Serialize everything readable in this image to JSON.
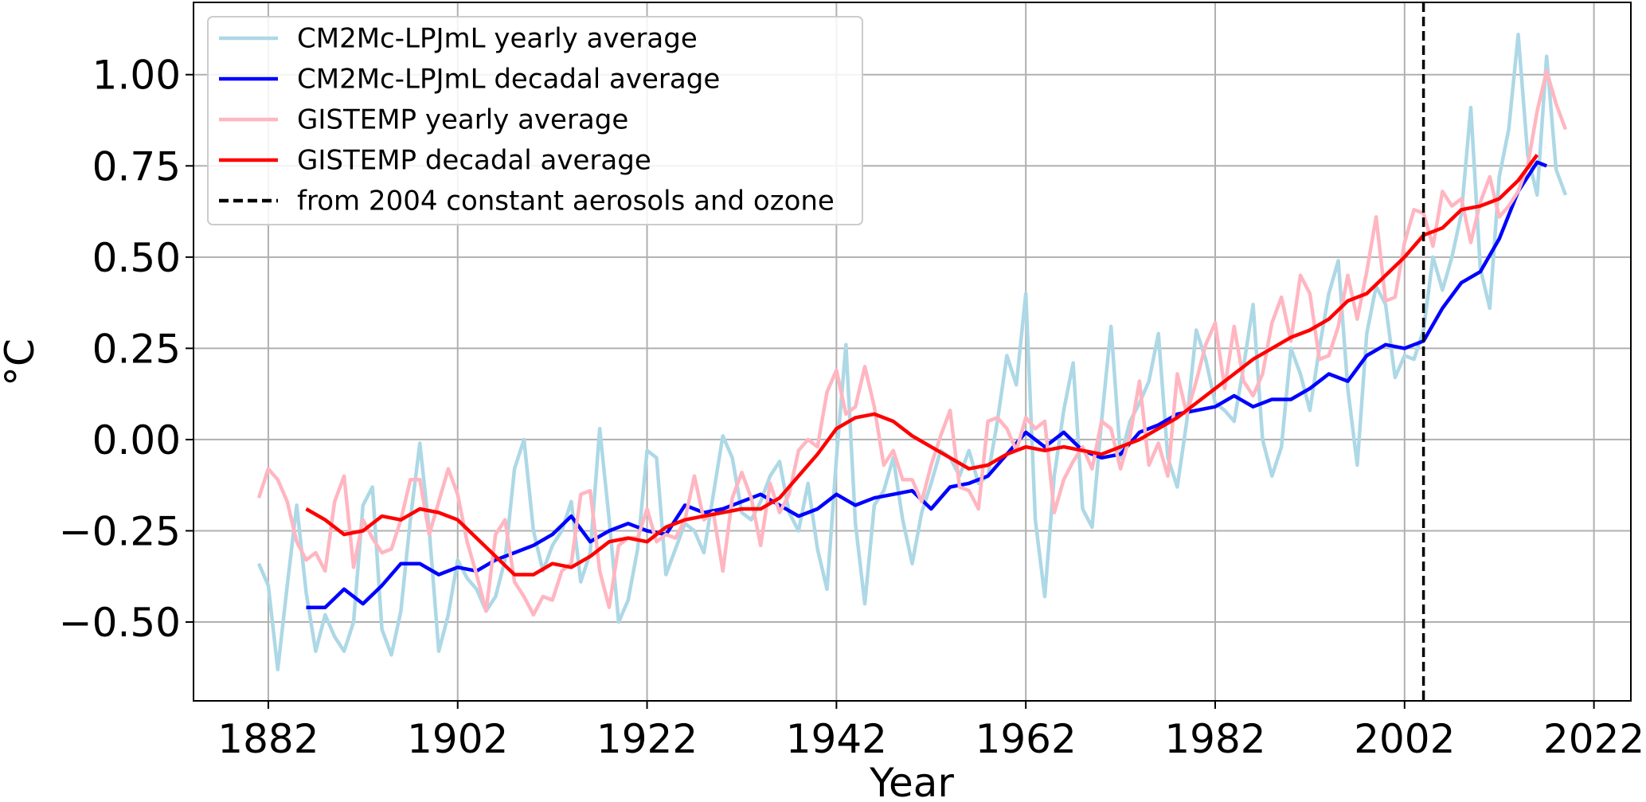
{
  "chart_data": {
    "type": "line",
    "xlabel": "Year",
    "ylabel": "°C",
    "xlim": [
      1874.1,
      2025.9
    ],
    "ylim": [
      -0.716,
      1.198
    ],
    "xticks": [
      1882,
      1902,
      1922,
      1942,
      1962,
      1982,
      2002,
      2022
    ],
    "yticks": [
      {
        "value": -0.5,
        "label": "−0.50"
      },
      {
        "value": -0.25,
        "label": "−0.25"
      },
      {
        "value": 0,
        "label": "0.00"
      },
      {
        "value": 0.25,
        "label": "0.25"
      },
      {
        "value": 0.5,
        "label": "0.50"
      },
      {
        "value": 0.75,
        "label": "0.75"
      },
      {
        "value": 1,
        "label": "1.00"
      }
    ],
    "grid": true,
    "legend": "upper left",
    "series": [
      {
        "name": "CM2Mc-LPJmL yearly average",
        "color": "#add8e6",
        "x": [
          1881,
          1882,
          1883,
          1884,
          1885,
          1886,
          1887,
          1888,
          1889,
          1890,
          1891,
          1892,
          1893,
          1894,
          1895,
          1896,
          1897,
          1898,
          1899,
          1900,
          1901,
          1902,
          1903,
          1904,
          1905,
          1906,
          1907,
          1908,
          1909,
          1910,
          1911,
          1912,
          1913,
          1914,
          1915,
          1916,
          1917,
          1918,
          1919,
          1920,
          1921,
          1922,
          1923,
          1924,
          1925,
          1926,
          1927,
          1928,
          1929,
          1930,
          1931,
          1932,
          1933,
          1934,
          1935,
          1936,
          1937,
          1938,
          1939,
          1940,
          1941,
          1942,
          1943,
          1944,
          1945,
          1946,
          1947,
          1948,
          1949,
          1950,
          1951,
          1952,
          1953,
          1954,
          1955,
          1956,
          1957,
          1958,
          1959,
          1960,
          1961,
          1962,
          1963,
          1964,
          1965,
          1966,
          1967,
          1968,
          1969,
          1970,
          1971,
          1972,
          1973,
          1974,
          1975,
          1976,
          1977,
          1978,
          1979,
          1980,
          1981,
          1982,
          1983,
          1984,
          1985,
          1986,
          1987,
          1988,
          1989,
          1990,
          1991,
          1992,
          1993,
          1994,
          1995,
          1996,
          1997,
          1998,
          1999,
          2000,
          2001,
          2002,
          2003,
          2004,
          2005,
          2006,
          2007,
          2008,
          2009,
          2010,
          2011,
          2012,
          2013,
          2014,
          2015,
          2016,
          2017,
          2018,
          2019
        ],
        "values": [
          -0.34,
          -0.4,
          -0.63,
          -0.4,
          -0.18,
          -0.42,
          -0.58,
          -0.48,
          -0.54,
          -0.58,
          -0.5,
          -0.18,
          -0.13,
          -0.52,
          -0.59,
          -0.47,
          -0.22,
          -0.01,
          -0.25,
          -0.58,
          -0.48,
          -0.33,
          -0.38,
          -0.41,
          -0.47,
          -0.43,
          -0.33,
          -0.08,
          0.0,
          -0.25,
          -0.36,
          -0.29,
          -0.25,
          -0.17,
          -0.39,
          -0.31,
          0.03,
          -0.22,
          -0.5,
          -0.44,
          -0.3,
          -0.03,
          -0.05,
          -0.37,
          -0.3,
          -0.23,
          -0.25,
          -0.31,
          -0.15,
          0.01,
          -0.05,
          -0.2,
          -0.22,
          -0.17,
          -0.1,
          -0.06,
          -0.2,
          -0.25,
          -0.12,
          -0.3,
          -0.41,
          -0.05,
          0.26,
          -0.23,
          -0.45,
          -0.18,
          -0.14,
          -0.05,
          -0.22,
          -0.34,
          -0.2,
          -0.12,
          -0.03,
          -0.05,
          -0.1,
          -0.03,
          -0.12,
          -0.1,
          0.05,
          0.23,
          0.15,
          0.4,
          -0.22,
          -0.43,
          -0.1,
          0.08,
          0.21,
          -0.19,
          -0.24,
          0.05,
          0.31,
          -0.05,
          0.05,
          0.1,
          0.16,
          0.29,
          -0.05,
          -0.13,
          0.05,
          0.3,
          0.22,
          0.1,
          0.08,
          0.05,
          0.2,
          0.37,
          0.0,
          -0.1,
          -0.02,
          0.25,
          0.18,
          0.08,
          0.25,
          0.4,
          0.49,
          0.14,
          -0.07,
          0.29,
          0.42,
          0.37,
          0.17,
          0.23,
          0.22,
          0.3,
          0.5,
          0.41,
          0.5,
          0.62,
          0.91,
          0.47,
          0.36,
          0.72,
          0.85,
          1.11,
          0.78,
          0.67,
          1.05,
          0.74,
          0.67
        ]
      },
      {
        "name": "CM2Mc-LPJmL decadal average",
        "color": "#0000ff",
        "x": [
          1886,
          1888,
          1890,
          1892,
          1894,
          1896,
          1898,
          1900,
          1902,
          1904,
          1906,
          1908,
          1910,
          1912,
          1914,
          1916,
          1918,
          1920,
          1922,
          1924,
          1926,
          1928,
          1930,
          1932,
          1934,
          1936,
          1938,
          1940,
          1942,
          1944,
          1946,
          1948,
          1950,
          1952,
          1954,
          1956,
          1958,
          1960,
          1962,
          1964,
          1966,
          1968,
          1970,
          1972,
          1974,
          1976,
          1978,
          1980,
          1982,
          1984,
          1986,
          1988,
          1990,
          1992,
          1994,
          1996,
          1998,
          2000,
          2002,
          2004,
          2006,
          2008,
          2010,
          2012,
          2014,
          2016,
          2017
        ],
        "values": [
          -0.46,
          -0.46,
          -0.41,
          -0.45,
          -0.4,
          -0.34,
          -0.34,
          -0.37,
          -0.35,
          -0.36,
          -0.33,
          -0.31,
          -0.29,
          -0.26,
          -0.21,
          -0.28,
          -0.25,
          -0.23,
          -0.25,
          -0.26,
          -0.18,
          -0.2,
          -0.19,
          -0.17,
          -0.15,
          -0.18,
          -0.21,
          -0.19,
          -0.15,
          -0.18,
          -0.16,
          -0.15,
          -0.14,
          -0.19,
          -0.13,
          -0.12,
          -0.1,
          -0.04,
          0.02,
          -0.02,
          0.02,
          -0.03,
          -0.05,
          -0.04,
          0.02,
          0.04,
          0.07,
          0.08,
          0.09,
          0.12,
          0.09,
          0.11,
          0.11,
          0.14,
          0.18,
          0.16,
          0.23,
          0.26,
          0.25,
          0.27,
          0.36,
          0.43,
          0.46,
          0.55,
          0.68,
          0.76,
          0.75
        ]
      },
      {
        "name": "GISTEMP yearly average",
        "color": "#ffb6c1",
        "x": [
          1881,
          1882,
          1883,
          1884,
          1885,
          1886,
          1887,
          1888,
          1889,
          1890,
          1891,
          1892,
          1893,
          1894,
          1895,
          1896,
          1897,
          1898,
          1899,
          1900,
          1901,
          1902,
          1903,
          1904,
          1905,
          1906,
          1907,
          1908,
          1909,
          1910,
          1911,
          1912,
          1913,
          1914,
          1915,
          1916,
          1917,
          1918,
          1919,
          1920,
          1921,
          1922,
          1923,
          1924,
          1925,
          1926,
          1927,
          1928,
          1929,
          1930,
          1931,
          1932,
          1933,
          1934,
          1935,
          1936,
          1937,
          1938,
          1939,
          1940,
          1941,
          1942,
          1943,
          1944,
          1945,
          1946,
          1947,
          1948,
          1949,
          1950,
          1951,
          1952,
          1953,
          1954,
          1955,
          1956,
          1957,
          1958,
          1959,
          1960,
          1961,
          1962,
          1963,
          1964,
          1965,
          1966,
          1967,
          1968,
          1969,
          1970,
          1971,
          1972,
          1973,
          1974,
          1975,
          1976,
          1977,
          1978,
          1979,
          1980,
          1981,
          1982,
          1983,
          1984,
          1985,
          1986,
          1987,
          1988,
          1989,
          1990,
          1991,
          1992,
          1993,
          1994,
          1995,
          1996,
          1997,
          1998,
          1999,
          2000,
          2001,
          2002,
          2003,
          2004,
          2005,
          2006,
          2007,
          2008,
          2009,
          2010,
          2011,
          2012,
          2013,
          2014,
          2015,
          2016,
          2017,
          2018,
          2019
        ],
        "values": [
          -0.16,
          -0.08,
          -0.11,
          -0.17,
          -0.28,
          -0.33,
          -0.31,
          -0.36,
          -0.17,
          -0.1,
          -0.35,
          -0.22,
          -0.27,
          -0.31,
          -0.3,
          -0.22,
          -0.11,
          -0.11,
          -0.26,
          -0.17,
          -0.08,
          -0.15,
          -0.28,
          -0.37,
          -0.47,
          -0.26,
          -0.22,
          -0.39,
          -0.43,
          -0.48,
          -0.43,
          -0.44,
          -0.36,
          -0.34,
          -0.15,
          -0.14,
          -0.36,
          -0.46,
          -0.29,
          -0.27,
          -0.27,
          -0.19,
          -0.28,
          -0.26,
          -0.27,
          -0.22,
          -0.1,
          -0.22,
          -0.2,
          -0.36,
          -0.16,
          -0.09,
          -0.16,
          -0.29,
          -0.12,
          -0.2,
          -0.15,
          -0.03,
          0.0,
          -0.02,
          0.13,
          0.19,
          0.07,
          0.09,
          0.2,
          0.09,
          -0.07,
          -0.03,
          -0.11,
          -0.11,
          -0.17,
          -0.07,
          0.01,
          0.08,
          -0.13,
          -0.14,
          -0.19,
          0.05,
          0.06,
          0.03,
          -0.03,
          0.06,
          0.03,
          0.05,
          -0.2,
          -0.11,
          -0.06,
          -0.02,
          -0.08,
          0.05,
          0.03,
          -0.08,
          0.01,
          0.16,
          -0.07,
          -0.01,
          -0.1,
          0.18,
          0.07,
          0.16,
          0.26,
          0.32,
          0.14,
          0.31,
          0.16,
          0.12,
          0.18,
          0.32,
          0.39,
          0.27,
          0.45,
          0.4,
          0.22,
          0.23,
          0.31,
          0.45,
          0.33,
          0.46,
          0.61,
          0.38,
          0.39,
          0.54,
          0.63,
          0.62,
          0.53,
          0.68,
          0.64,
          0.66,
          0.54,
          0.65,
          0.72,
          0.61,
          0.64,
          0.68,
          0.75,
          0.9,
          1.01,
          0.92,
          0.85
        ]
      },
      {
        "name": "GISTEMP decadal average",
        "color": "#ff0000",
        "x": [
          1886,
          1888,
          1890,
          1892,
          1894,
          1896,
          1898,
          1900,
          1902,
          1904,
          1906,
          1908,
          1910,
          1912,
          1914,
          1916,
          1918,
          1920,
          1922,
          1924,
          1926,
          1928,
          1930,
          1932,
          1934,
          1936,
          1938,
          1940,
          1942,
          1944,
          1946,
          1948,
          1950,
          1952,
          1954,
          1956,
          1958,
          1960,
          1962,
          1964,
          1966,
          1968,
          1970,
          1972,
          1974,
          1976,
          1978,
          1980,
          1982,
          1984,
          1986,
          1988,
          1990,
          1992,
          1994,
          1996,
          1998,
          2000,
          2002,
          2004,
          2006,
          2008,
          2010,
          2012,
          2014,
          2016
        ],
        "values": [
          -0.19,
          -0.22,
          -0.26,
          -0.25,
          -0.21,
          -0.22,
          -0.19,
          -0.2,
          -0.22,
          -0.27,
          -0.32,
          -0.37,
          -0.37,
          -0.34,
          -0.35,
          -0.32,
          -0.28,
          -0.27,
          -0.28,
          -0.24,
          -0.22,
          -0.21,
          -0.2,
          -0.19,
          -0.19,
          -0.16,
          -0.1,
          -0.04,
          0.03,
          0.06,
          0.07,
          0.05,
          0.01,
          -0.02,
          -0.05,
          -0.08,
          -0.07,
          -0.04,
          -0.02,
          -0.03,
          -0.02,
          -0.03,
          -0.04,
          -0.02,
          0.0,
          0.03,
          0.06,
          0.1,
          0.14,
          0.18,
          0.22,
          0.25,
          0.28,
          0.3,
          0.33,
          0.38,
          0.4,
          0.45,
          0.5,
          0.56,
          0.58,
          0.63,
          0.64,
          0.66,
          0.71,
          0.78
        ]
      }
    ],
    "vline": {
      "x": 2004,
      "label": "from 2004 constant aerosols and ozone",
      "color": "#000000"
    }
  }
}
